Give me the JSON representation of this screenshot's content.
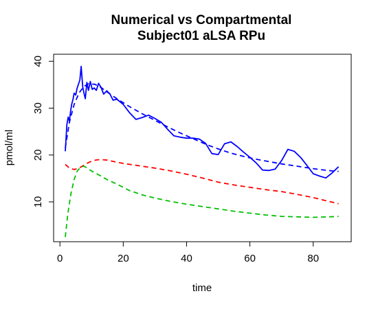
{
  "chart_data": {
    "type": "line",
    "title": "Numerical vs Compartmental",
    "subtitle": "Subject01 aLSA RPu",
    "xlabel": "time",
    "ylabel": "pmol/ml",
    "xlim": [
      -2,
      92
    ],
    "ylim": [
      1.5,
      41.5
    ],
    "xticks": [
      0,
      20,
      40,
      60,
      80
    ],
    "yticks": [
      10,
      20,
      30,
      40
    ],
    "grid": false,
    "legend": "none",
    "series": [
      {
        "color": "#0000FF",
        "style": "solid",
        "x": [
          1.7,
          2.2,
          2.6,
          3.0,
          3.3,
          3.7,
          4.1,
          4.5,
          5.0,
          5.4,
          5.8,
          6.3,
          6.7,
          7.2,
          7.6,
          8.0,
          8.5,
          9.0,
          9.6,
          10.2,
          10.8,
          11.5,
          12.2,
          13.0,
          13.8,
          14.8,
          15.8,
          16.8,
          18.0,
          20.0,
          22.0,
          24.0,
          26.0,
          28.0,
          30.0,
          32.0,
          34.0,
          36.0,
          38.0,
          40.0,
          42.0,
          44.0,
          46.0,
          48.0,
          50.0,
          52.0,
          54.0,
          56.0,
          58.0,
          60.0,
          62.0,
          64.0,
          66.0,
          68.0,
          70.0,
          72.0,
          74.0,
          76.0,
          78.0,
          80.0,
          82.0,
          84.0,
          86.0,
          88.0
        ],
        "y": [
          20.8,
          26.5,
          28.1,
          27.2,
          29.0,
          30.8,
          31.8,
          33.2,
          32.8,
          34.2,
          35.0,
          36.0,
          38.9,
          34.5,
          33.2,
          32.0,
          35.5,
          33.8,
          35.7,
          34.0,
          34.3,
          33.8,
          35.3,
          34.4,
          33.0,
          33.7,
          33.0,
          31.7,
          31.9,
          30.8,
          29.0,
          27.6,
          28.0,
          28.5,
          27.8,
          27.0,
          25.5,
          24.1,
          23.8,
          23.6,
          23.6,
          23.4,
          22.5,
          20.3,
          20.1,
          22.4,
          22.8,
          21.8,
          20.6,
          19.5,
          18.3,
          16.8,
          16.7,
          17.0,
          18.8,
          21.2,
          20.8,
          19.5,
          17.8,
          16.0,
          15.5,
          15.1,
          16.2,
          17.5
        ]
      },
      {
        "color": "#0000FF",
        "style": "dashed",
        "x": [
          1.7,
          3.0,
          4.5,
          6.0,
          7.5,
          9.0,
          11.0,
          13.0,
          15.0,
          18.0,
          22.0,
          26.0,
          30.0,
          34.0,
          38.0,
          42.0,
          46.0,
          50.0,
          54.0,
          58.0,
          62.0,
          66.0,
          70.0,
          74.0,
          78.0,
          82.0,
          86.0,
          88.0
        ],
        "y": [
          21.5,
          27.0,
          30.8,
          33.2,
          34.6,
          35.2,
          35.1,
          34.4,
          33.4,
          32.0,
          30.3,
          28.8,
          27.4,
          26.0,
          24.7,
          23.5,
          22.3,
          21.3,
          20.4,
          19.7,
          19.1,
          18.6,
          18.1,
          17.7,
          17.3,
          16.9,
          16.6,
          16.5
        ]
      },
      {
        "color": "#FF0000",
        "style": "dashed",
        "x": [
          1.7,
          3.0,
          4.5,
          6.0,
          7.5,
          9.0,
          10.5,
          12.0,
          13.5,
          15.0,
          17.0,
          20.0,
          25.0,
          30.0,
          35.0,
          40.0,
          45.0,
          50.0,
          55.0,
          60.0,
          65.0,
          70.0,
          75.0,
          80.0,
          85.0,
          88.0
        ],
        "y": [
          18.0,
          17.2,
          16.9,
          17.2,
          17.8,
          18.4,
          18.8,
          19.0,
          19.0,
          18.9,
          18.6,
          18.2,
          17.7,
          17.2,
          16.6,
          15.9,
          15.1,
          14.2,
          13.6,
          13.1,
          12.6,
          12.2,
          11.6,
          10.9,
          10.1,
          9.6
        ]
      },
      {
        "color": "#00C000",
        "style": "dashed",
        "x": [
          1.7,
          2.5,
          3.5,
          4.5,
          5.5,
          6.5,
          7.5,
          8.5,
          9.5,
          11.0,
          13.0,
          15.0,
          18.0,
          22.0,
          26.0,
          30.0,
          35.0,
          40.0,
          45.0,
          50.0,
          55.0,
          60.0,
          65.0,
          70.0,
          75.0,
          80.0,
          85.0,
          88.0
        ],
        "y": [
          2.5,
          7.5,
          11.8,
          14.8,
          16.6,
          17.4,
          17.6,
          17.3,
          16.8,
          16.2,
          15.5,
          14.7,
          13.8,
          12.4,
          11.5,
          10.8,
          10.1,
          9.5,
          9.0,
          8.5,
          8.0,
          7.6,
          7.2,
          6.9,
          6.8,
          6.7,
          6.8,
          6.9
        ]
      }
    ]
  }
}
